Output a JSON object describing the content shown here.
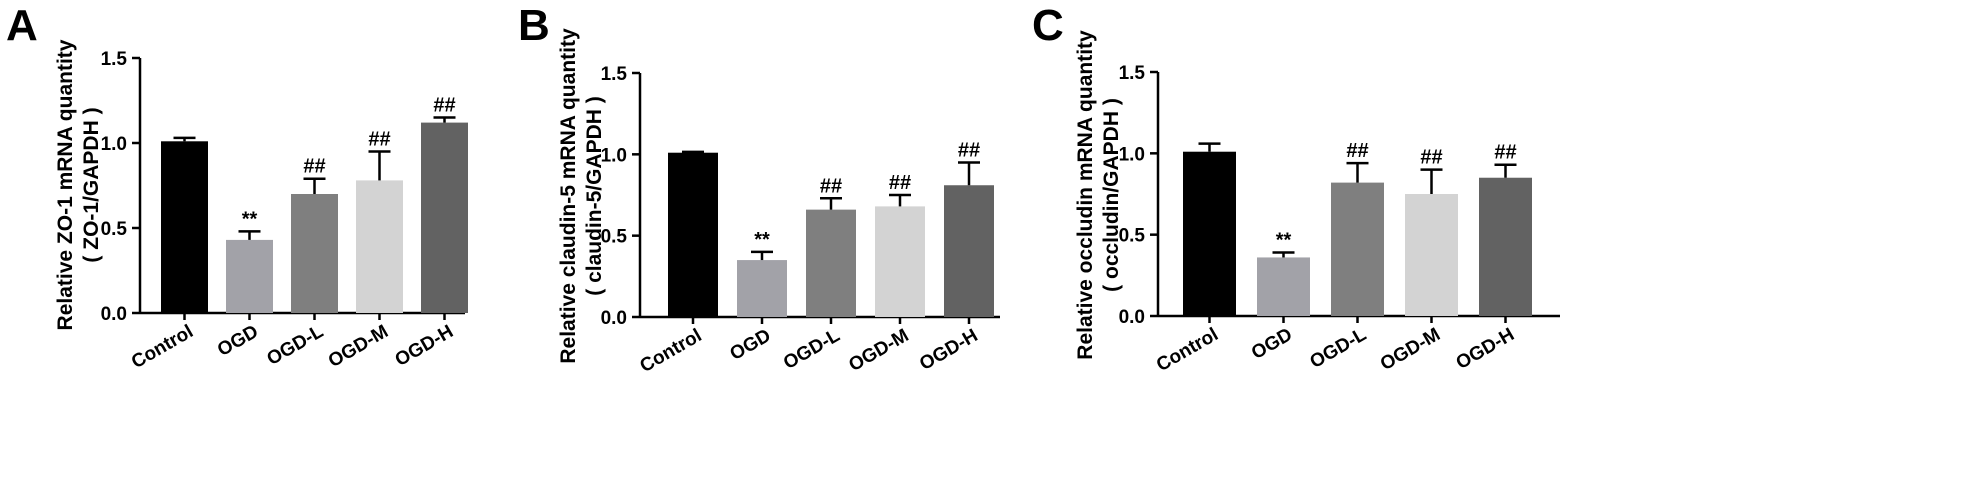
{
  "chart_data": [
    {
      "type": "bar",
      "panel": "A",
      "ylabel_lines": [
        "Relative ZO-1 mRNA quantity",
        "( ZO-1/GAPDH )"
      ],
      "ylim": [
        0,
        1.5
      ],
      "yticks": [
        "0.0",
        "0.5",
        "1.0",
        "1.5"
      ],
      "categories": [
        "Control",
        "OGD",
        "OGD-L",
        "OGD-M",
        "OGD-H"
      ],
      "values": [
        1.01,
        0.43,
        0.7,
        0.78,
        1.12
      ],
      "errors": [
        0.02,
        0.05,
        0.09,
        0.17,
        0.03
      ],
      "annotations": [
        "",
        "**",
        "##",
        "##",
        "##"
      ],
      "colors": [
        "#000000",
        "#a2a2a8",
        "#7f7f7f",
        "#d3d3d3",
        "#626262"
      ]
    },
    {
      "type": "bar",
      "panel": "B",
      "ylabel_lines": [
        "Relative claudin-5 mRNA quantity",
        "( claudin-5/GAPDH )"
      ],
      "ylim": [
        0,
        1.5
      ],
      "yticks": [
        "0.0",
        "0.5",
        "1.0",
        "1.5"
      ],
      "categories": [
        "Control",
        "OGD",
        "OGD-L",
        "OGD-M",
        "OGD-H"
      ],
      "values": [
        1.01,
        0.35,
        0.66,
        0.68,
        0.81
      ],
      "errors": [
        0.005,
        0.05,
        0.07,
        0.07,
        0.14
      ],
      "annotations": [
        "",
        "**",
        "##",
        "##",
        "##"
      ],
      "colors": [
        "#000000",
        "#a2a2a8",
        "#7f7f7f",
        "#d3d3d3",
        "#626262"
      ]
    },
    {
      "type": "bar",
      "panel": "C",
      "ylabel_lines": [
        "Relative occludin mRNA quantity",
        "( occludin/GAPDH )"
      ],
      "ylim": [
        0,
        1.5
      ],
      "yticks": [
        "0.0",
        "0.5",
        "1.0",
        "1.5"
      ],
      "categories": [
        "Control",
        "OGD",
        "OGD-L",
        "OGD-M",
        "OGD-H"
      ],
      "values": [
        1.01,
        0.36,
        0.82,
        0.75,
        0.85
      ],
      "errors": [
        0.05,
        0.03,
        0.12,
        0.15,
        0.08
      ],
      "annotations": [
        "",
        "**",
        "##",
        "##",
        "##"
      ],
      "colors": [
        "#000000",
        "#a2a2a8",
        "#7f7f7f",
        "#d3d3d3",
        "#626262"
      ]
    }
  ]
}
